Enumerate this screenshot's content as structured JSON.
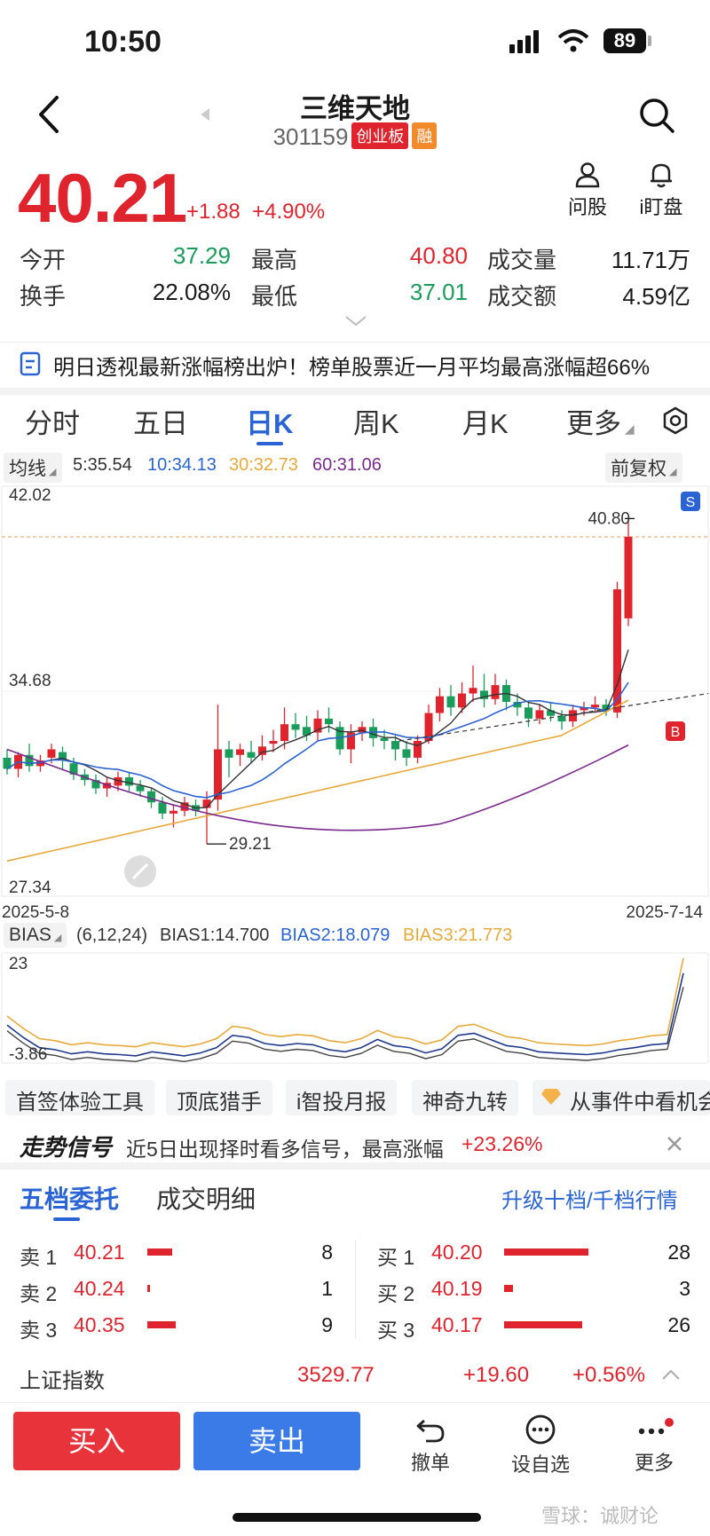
{
  "status": {
    "time": "10:50",
    "battery": "89"
  },
  "header": {
    "title": "三维天地",
    "code": "301159",
    "board_tag": "创业板",
    "margin_tag": "融"
  },
  "quote": {
    "price": "40.21",
    "change": "+1.88",
    "change_pct": "+4.90%",
    "ask_label": "问股",
    "watch_label": "i盯盘"
  },
  "stats": {
    "open_label": "今开",
    "open": "37.29",
    "high_label": "最高",
    "high": "40.80",
    "volume_label": "成交量",
    "volume": "11.71万",
    "turnover_label": "换手",
    "turnover": "22.08%",
    "low_label": "最低",
    "low": "37.01",
    "amount_label": "成交额",
    "amount": "4.59亿"
  },
  "news": "明日透视最新涨幅榜出炉！榜单股票近一月平均最高涨幅超66%",
  "tabs": [
    "分时",
    "五日",
    "日K",
    "周K",
    "月K",
    "更多"
  ],
  "ma": {
    "label": "均线",
    "ma5": "5:35.54",
    "ma10": "10:34.13",
    "ma30": "30:32.73",
    "ma60": "60:31.06",
    "adjust": "前复权",
    "colors": {
      "ma5": "#333333",
      "ma10": "#2a63d3",
      "ma30": "#e8a93b",
      "ma60": "#7a2a8c"
    }
  },
  "kchart": {
    "ymax_label": "42.02",
    "ymid_label": "34.68",
    "ymin_label": "27.34",
    "start_date": "2025-5-8",
    "end_date": "2025-7-14",
    "high_marker": "40.80",
    "low_marker": "29.21",
    "sell_badge": "S",
    "buy_badge": "B"
  },
  "bias": {
    "label": "BIAS",
    "params": "(6,12,24)",
    "b1": "BIAS1:14.700",
    "b2": "BIAS2:18.079",
    "b3": "BIAS3:21.773",
    "ymax_label": "23",
    "ymin_label": "-3.86"
  },
  "tools": [
    "首签体验工具",
    "顶底猎手",
    "i智投月报",
    "神奇九转",
    "从事件中看机会"
  ],
  "signal": {
    "title": "走势信号",
    "text": "近5日出现择时看多信号，最高涨幅",
    "pct": "+23.26%"
  },
  "orderbook": {
    "tab1": "五档委托",
    "tab2": "成交明细",
    "upgrade": "升级十档/千档行情",
    "asks": [
      {
        "label": "卖 1",
        "price": "40.21",
        "qty": "8"
      },
      {
        "label": "卖 2",
        "price": "40.24",
        "qty": "1"
      },
      {
        "label": "卖 3",
        "price": "40.35",
        "qty": "9"
      }
    ],
    "bids": [
      {
        "label": "买 1",
        "price": "40.20",
        "qty": "28"
      },
      {
        "label": "买 2",
        "price": "40.19",
        "qty": "3"
      },
      {
        "label": "买 3",
        "price": "40.17",
        "qty": "26"
      }
    ]
  },
  "index": {
    "name": "上证指数",
    "value": "3529.77",
    "change": "+19.60",
    "pct": "+0.56%"
  },
  "actions": {
    "buy": "买入",
    "sell": "卖出",
    "cancel": "撤单",
    "watchlist": "设自选",
    "more": "更多"
  },
  "watermark": "雪球：诚财论"
}
